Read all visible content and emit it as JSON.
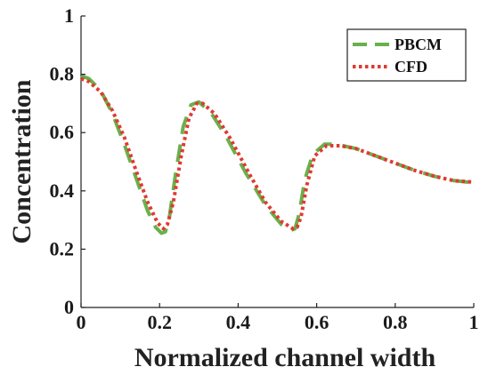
{
  "chart_data": {
    "type": "line",
    "xlabel": "Normalized channel width",
    "ylabel": "Concentration",
    "xlim": [
      0,
      1
    ],
    "ylim": [
      0,
      1
    ],
    "x_ticks": [
      "0",
      "0.2",
      "0.4",
      "0.6",
      "0.8",
      "1"
    ],
    "y_ticks": [
      "0",
      "0.2",
      "0.4",
      "0.6",
      "0.8",
      "1"
    ],
    "grid": false,
    "legend_position": "top-right",
    "series": [
      {
        "name": "PBCM",
        "color": "#6ab04c",
        "style": "dashed",
        "x": [
          0,
          0.02,
          0.05,
          0.08,
          0.11,
          0.14,
          0.17,
          0.19,
          0.205,
          0.215,
          0.225,
          0.24,
          0.26,
          0.28,
          0.3,
          0.33,
          0.37,
          0.42,
          0.47,
          0.51,
          0.535,
          0.545,
          0.555,
          0.57,
          0.59,
          0.62,
          0.65,
          0.7,
          0.75,
          0.8,
          0.85,
          0.9,
          0.95,
          1.0
        ],
        "y": [
          0.795,
          0.785,
          0.745,
          0.665,
          0.56,
          0.445,
          0.33,
          0.275,
          0.255,
          0.26,
          0.31,
          0.45,
          0.62,
          0.695,
          0.705,
          0.67,
          0.585,
          0.46,
          0.35,
          0.285,
          0.265,
          0.27,
          0.32,
          0.44,
          0.525,
          0.56,
          0.56,
          0.545,
          0.52,
          0.495,
          0.47,
          0.45,
          0.435,
          0.428
        ]
      },
      {
        "name": "CFD",
        "color": "#e03a2f",
        "style": "dotted",
        "x": [
          0,
          0.02,
          0.05,
          0.08,
          0.11,
          0.14,
          0.17,
          0.195,
          0.21,
          0.22,
          0.235,
          0.255,
          0.275,
          0.295,
          0.31,
          0.34,
          0.38,
          0.43,
          0.47,
          0.51,
          0.54,
          0.55,
          0.56,
          0.575,
          0.595,
          0.625,
          0.66,
          0.7,
          0.75,
          0.8,
          0.85,
          0.9,
          0.95,
          1.0
        ],
        "y": [
          0.785,
          0.775,
          0.74,
          0.675,
          0.585,
          0.47,
          0.36,
          0.29,
          0.27,
          0.285,
          0.36,
          0.52,
          0.65,
          0.7,
          0.7,
          0.665,
          0.58,
          0.455,
          0.36,
          0.295,
          0.27,
          0.275,
          0.31,
          0.42,
          0.52,
          0.555,
          0.555,
          0.545,
          0.52,
          0.495,
          0.47,
          0.45,
          0.435,
          0.43
        ]
      }
    ]
  }
}
